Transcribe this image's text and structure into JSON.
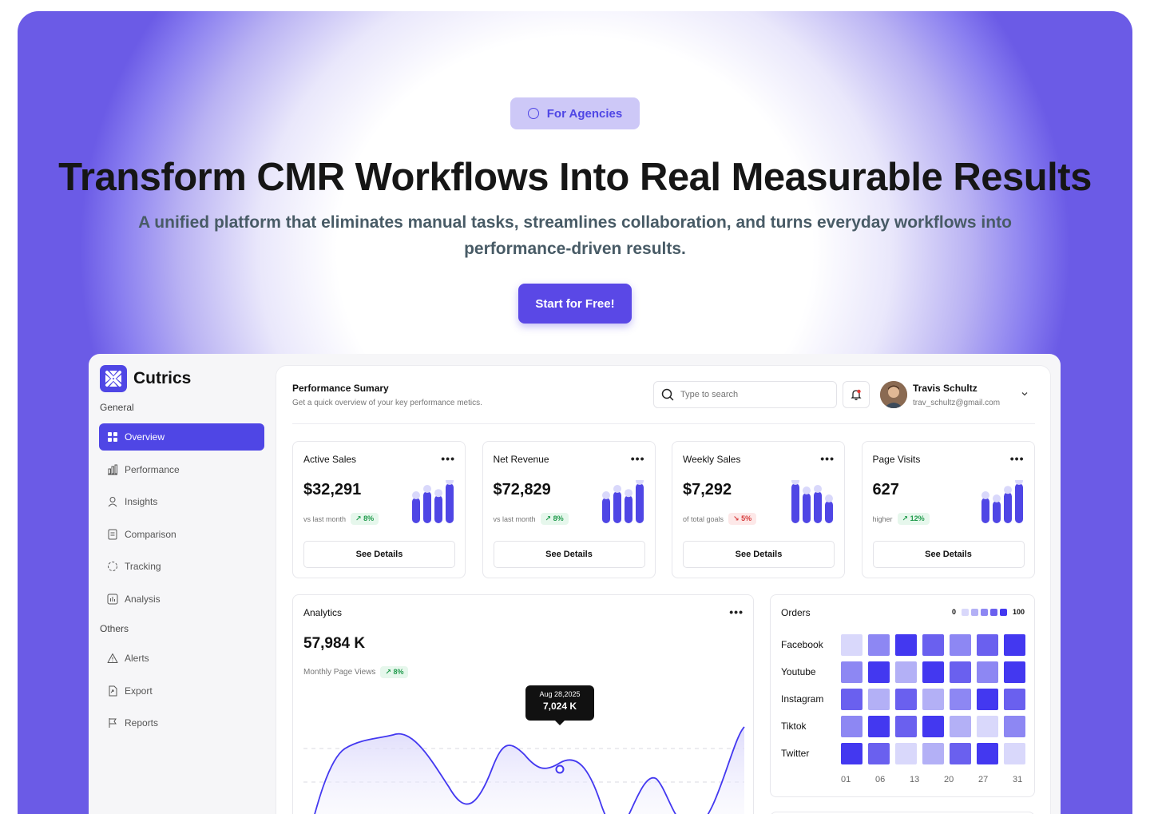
{
  "hero": {
    "badge": "For Agencies",
    "title": "Transform CMR Workflows Into Real Measurable Results",
    "subtitle": "A unified platform that eliminates manual tasks, streamlines collaboration, and turns everyday workflows into performance-driven results.",
    "cta": "Start for Free!"
  },
  "sidebar": {
    "brand": "Cutrics",
    "general_label": "General",
    "others_label": "Others",
    "items": [
      {
        "label": "Overview",
        "icon": "grid-icon",
        "active": true
      },
      {
        "label": "Performance",
        "icon": "bar-chart-icon"
      },
      {
        "label": "Insights",
        "icon": "user-icon"
      },
      {
        "label": "Comparison",
        "icon": "document-icon"
      },
      {
        "label": "Tracking",
        "icon": "spinner-icon"
      },
      {
        "label": "Analysis",
        "icon": "chart-box-icon"
      }
    ],
    "other_items": [
      {
        "label": "Alerts",
        "icon": "warning-icon"
      },
      {
        "label": "Export",
        "icon": "file-export-icon"
      },
      {
        "label": "Reports",
        "icon": "flag-icon"
      }
    ]
  },
  "header": {
    "title": "Performance Sumary",
    "subtitle": "Get a quick overview of your key performance metics.",
    "search_placeholder": "Type to search",
    "user_name": "Travis Schultz",
    "user_email": "trav_schultz@gmail.com"
  },
  "cards": [
    {
      "title": "Active Sales",
      "value": "$32,291",
      "note": "vs last month",
      "change": "8%",
      "trend": "up",
      "button": "See Details",
      "bars": [
        0.55,
        0.75,
        0.62,
        1.0
      ]
    },
    {
      "title": "Net Revenue",
      "value": "$72,829",
      "note": "vs last month",
      "change": "8%",
      "trend": "up",
      "button": "See Details",
      "bars": [
        0.55,
        0.75,
        0.62,
        1.0
      ]
    },
    {
      "title": "Weekly Sales",
      "value": "$7,292",
      "note": "of total goals",
      "change": "5%",
      "trend": "down",
      "button": "See Details",
      "bars": [
        1.0,
        0.7,
        0.75,
        0.45
      ]
    },
    {
      "title": "Page Visits",
      "value": "627",
      "note": "higher",
      "change": "12%",
      "trend": "up",
      "button": "See Details",
      "bars": [
        0.55,
        0.45,
        0.72,
        1.0
      ]
    }
  ],
  "analytics": {
    "title": "Analytics",
    "value": "57,984 K",
    "note": "Monthly Page Views",
    "change": "8%",
    "tooltip_date": "Aug 28,2025",
    "tooltip_value": "7,024 K"
  },
  "orders": {
    "title": "Orders",
    "legend_min": "0",
    "legend_max": "100",
    "legend_colors": [
      "#d9d8fb",
      "#b3b0f6",
      "#8d87f3",
      "#6a60ef",
      "#4338f0"
    ],
    "x_labels": [
      "01",
      "06",
      "13",
      "20",
      "27",
      "31"
    ],
    "rows": [
      {
        "label": "Facebook",
        "levels": [
          0,
          2,
          4,
          3,
          2,
          3,
          4
        ]
      },
      {
        "label": "Youtube",
        "levels": [
          2,
          4,
          1,
          4,
          3,
          2,
          4
        ]
      },
      {
        "label": "Instagram",
        "levels": [
          3,
          1,
          3,
          1,
          2,
          4,
          3
        ]
      },
      {
        "label": "Tiktok",
        "levels": [
          2,
          4,
          3,
          4,
          1,
          0,
          2
        ]
      },
      {
        "label": "Twitter",
        "levels": [
          4,
          3,
          0,
          1,
          3,
          4,
          0
        ]
      }
    ]
  },
  "colors": {
    "accent": "#4f46e5",
    "cta": "#5a48e6",
    "up": "#1f9a4b",
    "down": "#d63b3b"
  }
}
